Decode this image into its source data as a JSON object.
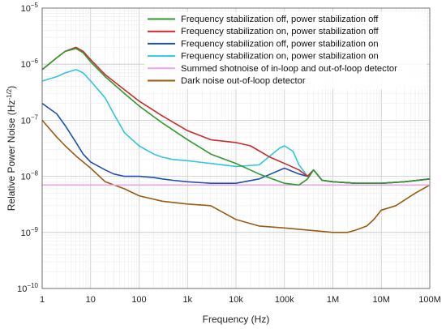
{
  "chart_data": {
    "type": "line",
    "title": "",
    "xlabel": "Frequency (Hz)",
    "ylabel": "Relative Power Noise (Hz",
    "ylabel_exp": "-1/2",
    "ylabel_close": ")",
    "xscale": "log",
    "yscale": "log",
    "xlim": [
      1,
      100000000
    ],
    "ylim": [
      1e-10,
      1e-05
    ],
    "grid": true,
    "legend_position": "top-right",
    "x_ticks": [
      {
        "value": 1,
        "label": "1"
      },
      {
        "value": 10,
        "label": "10"
      },
      {
        "value": 100,
        "label": "100"
      },
      {
        "value": 1000,
        "label": "1k"
      },
      {
        "value": 10000,
        "label": "10k"
      },
      {
        "value": 100000,
        "label": "100k"
      },
      {
        "value": 1000000,
        "label": "1M"
      },
      {
        "value": 10000000,
        "label": "10M"
      },
      {
        "value": 100000000,
        "label": "100M"
      }
    ],
    "y_ticks": [
      {
        "value": 1e-10,
        "mant": "10",
        "exp": "−10"
      },
      {
        "value": 1e-09,
        "mant": "10",
        "exp": "−9"
      },
      {
        "value": 1e-08,
        "mant": "10",
        "exp": "−8"
      },
      {
        "value": 1e-07,
        "mant": "10",
        "exp": "−7"
      },
      {
        "value": 1e-06,
        "mant": "10",
        "exp": "−6"
      },
      {
        "value": 1e-05,
        "mant": "10",
        "exp": "−5"
      }
    ],
    "series": [
      {
        "name": "Frequency stabilization off, power stabilization off",
        "color": "#2e9a2e",
        "x": [
          1,
          2,
          3,
          5,
          7,
          10,
          20,
          50,
          100,
          300,
          1000,
          3000,
          10000,
          30000,
          100000,
          200000,
          300000,
          400000,
          600000,
          1000000,
          3000000,
          10000000,
          30000000,
          100000000
        ],
        "y": [
          8e-07,
          1.3e-06,
          1.7e-06,
          1.9e-06,
          1.6e-06,
          1.1e-06,
          6e-07,
          3e-07,
          1.8e-07,
          9e-08,
          4.5e-08,
          2.5e-08,
          1.7e-08,
          1.1e-08,
          7.5e-09,
          7e-09,
          9e-09,
          1.3e-08,
          8.5e-09,
          8e-09,
          7.5e-09,
          7.5e-09,
          8e-09,
          9e-09
        ]
      },
      {
        "name": "Frequency stabilization on, power stabilization off",
        "color": "#cc2a2a",
        "x": [
          1,
          2,
          3,
          5,
          7,
          10,
          20,
          50,
          100,
          300,
          1000,
          3000,
          10000,
          20000,
          50000,
          100000,
          200000,
          300000,
          400000,
          600000,
          1000000,
          3000000,
          10000000,
          30000000,
          100000000
        ],
        "y": [
          8e-07,
          1.3e-06,
          1.7e-06,
          2e-06,
          1.7e-06,
          1.2e-06,
          6.5e-07,
          3.5e-07,
          2.2e-07,
          1.2e-07,
          6.5e-08,
          4.5e-08,
          4e-08,
          3.5e-08,
          2.2e-08,
          1.7e-08,
          1.3e-08,
          1e-08,
          1.3e-08,
          8.5e-09,
          8e-09,
          7.5e-09,
          7.5e-09,
          8e-09,
          9e-09
        ]
      },
      {
        "name": "Frequency stabilization off, power stabilization on",
        "color": "#1f4fb5",
        "x": [
          1,
          2,
          3,
          5,
          7,
          10,
          20,
          30,
          50,
          100,
          200,
          300,
          500,
          1000,
          3000,
          10000,
          30000,
          100000,
          200000,
          300000,
          400000,
          600000,
          1000000,
          3000000,
          10000000,
          30000000,
          100000000
        ],
        "y": [
          2e-07,
          1.3e-07,
          8e-08,
          4e-08,
          2.5e-08,
          1.8e-08,
          1.3e-08,
          1.1e-08,
          1e-08,
          1e-08,
          9.5e-09,
          9e-09,
          8.5e-09,
          8e-09,
          7.5e-09,
          7.5e-09,
          9e-09,
          1.4e-08,
          1.1e-08,
          1e-08,
          1.3e-08,
          8.5e-09,
          8e-09,
          7.5e-09,
          7.5e-09,
          8e-09,
          9e-09
        ]
      },
      {
        "name": "Frequency stabilization on, power stabilization on",
        "color": "#33c4e0",
        "x": [
          1,
          2,
          3,
          5,
          7,
          10,
          20,
          30,
          50,
          100,
          200,
          300,
          500,
          1000,
          3000,
          10000,
          30000,
          50000,
          80000,
          100000,
          150000,
          200000,
          300000,
          400000,
          600000,
          1000000,
          3000000,
          10000000,
          30000000,
          100000000
        ],
        "y": [
          5e-07,
          6e-07,
          7e-07,
          8e-07,
          7e-07,
          5e-07,
          2.5e-07,
          1.3e-07,
          6e-08,
          3.5e-08,
          2.5e-08,
          2.2e-08,
          2e-08,
          1.9e-08,
          1.7e-08,
          1.5e-08,
          1.6e-08,
          2.3e-08,
          3.2e-08,
          3.5e-08,
          2.8e-08,
          1.6e-08,
          1e-08,
          1.3e-08,
          8.5e-09,
          8e-09,
          7.5e-09,
          7.5e-09,
          8e-09,
          9e-09
        ]
      },
      {
        "name": "Summed shotnoise of in-loop and out-of-loop detector",
        "color": "#e8a6e8",
        "x": [
          1,
          100000000
        ],
        "y": [
          7e-09,
          7e-09
        ]
      },
      {
        "name": "Dark noise out-of-loop detector",
        "color": "#9a5a12",
        "x": [
          1,
          2,
          3,
          5,
          10,
          20,
          50,
          100,
          300,
          1000,
          3000,
          10000,
          30000,
          100000,
          300000,
          1000000,
          2000000,
          3000000,
          5000000,
          7000000,
          10000000,
          20000000,
          50000000,
          100000000
        ],
        "y": [
          1e-07,
          5e-08,
          3.5e-08,
          2.3e-08,
          1.4e-08,
          8e-09,
          6e-09,
          4.5e-09,
          3.6e-09,
          3.2e-09,
          3e-09,
          1.7e-09,
          1.3e-09,
          1.2e-09,
          1.1e-09,
          1e-09,
          1e-09,
          1.1e-09,
          1.3e-09,
          1.7e-09,
          2.5e-09,
          3e-09,
          5e-09,
          7e-09
        ]
      }
    ]
  }
}
